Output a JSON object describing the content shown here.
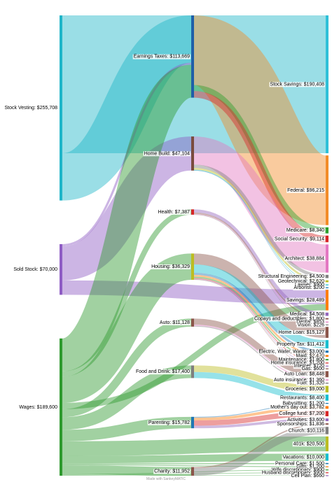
{
  "colors": {
    "Stock Vesting": "#1FB5C8",
    "Sold Stock": "#8E5CC4",
    "Wages": "#2E9A2E",
    "Earnings Taxes": "#1F5FA8",
    "Home Build": "#7A4B3E",
    "Stock Savings": "#2EC0D8",
    "Federal": "#F28C28",
    "Medicare": "#2CA02C",
    "Social Security": "#D62728",
    "Architect": "#E377C2",
    "Structural Engineering": "#7F7F7F",
    "Geotechnical": "#BCBD22",
    "Lawyer": "#17BECF",
    "Arbitrist": "#1F77B4",
    "Savings": "#FF7F0E",
    "Health": "#D62728",
    "Housing": "#BCBD22",
    "Auto": "#8C564B",
    "Food and Drink": "#7F7F7F",
    "Parenting": "#1F77B4",
    "Charity": "#8C564B",
    "Medical": "#9467BD",
    "Copays and deductibles": "#8C564B",
    "Dental": "#E377C2",
    "Vision": "#7F7F7F",
    "Home Loan": "#8C564B",
    "Property Tax": "#17BECF",
    "Electric, Water, Waste": "#1F77B4",
    "Maid": "#FF7F0E",
    "Maintenance": "#2CA02C",
    "Home insurance": "#D62728",
    "Internet": "#9467BD",
    "Gas": "#8C564B",
    "Auto Loan": "#8C564B",
    "Auto insurance": "#E377C2",
    "Fuel": "#7F7F7F",
    "Groceries": "#BCBD22",
    "Restaurants": "#17BECF",
    "Babysitting": "#1F77B4",
    "Mother's day out": "#FF7F0E",
    "College fund": "#D62728",
    "Activities": "#9467BD",
    "Sponsorships": "#8C564B",
    "Church": "#7F7F7F",
    "401k": "#BCBD22",
    "Vacations": "#17BECF",
    "Personal Care": "#1F77B4",
    "Gifts": "#FF7F0E",
    "Wife discretionary": "#2CA02C",
    "Husband discretionary": "#D62728",
    "Cell Plan": "#9467BD"
  },
  "nodes": [
    {
      "id": "Stock Vesting",
      "label": "Stock Vesting: $255,708",
      "value": 255708,
      "column": 0
    },
    {
      "id": "Sold Stock",
      "label": "Sold Stock: $70,000",
      "value": 70000,
      "column": 0
    },
    {
      "id": "Wages",
      "label": "Wages: $189,600",
      "value": 189600,
      "column": 0
    },
    {
      "id": "Earnings Taxes",
      "label": "Earnings Taxes: $113,669",
      "value": 113669,
      "column": 1
    },
    {
      "id": "Home Build",
      "label": "Home Build: $47,104",
      "value": 47104,
      "column": 1
    },
    {
      "id": "Health",
      "label": "Health: $7,387",
      "value": 7387,
      "column": 1
    },
    {
      "id": "Housing",
      "label": "Housing: $36,329",
      "value": 36329,
      "column": 1
    },
    {
      "id": "Auto",
      "label": "Auto: $11,128",
      "value": 11128,
      "column": 1
    },
    {
      "id": "Food and Drink",
      "label": "Food and Drink: $17,400",
      "value": 17400,
      "column": 1
    },
    {
      "id": "Parenting",
      "label": "Parenting: $15,782",
      "value": 15782,
      "column": 1
    },
    {
      "id": "Charity",
      "label": "Charity: $11,952",
      "value": 11952,
      "column": 1
    },
    {
      "id": "Stock Savings",
      "label": "Stock Savings: $190,408",
      "value": 190408,
      "column": 2
    },
    {
      "id": "Federal",
      "label": "Federal: $96,215",
      "value": 96215,
      "column": 2
    },
    {
      "id": "Medicare",
      "label": "Medicare: $8,340",
      "value": 8340,
      "column": 2
    },
    {
      "id": "Social Security",
      "label": "Social Security: $9,114",
      "value": 9114,
      "column": 2
    },
    {
      "id": "Architect",
      "label": "Architect: $38,884",
      "value": 38884,
      "column": 2
    },
    {
      "id": "Structural Engineering",
      "label": "Structural Engineering: $4,500",
      "value": 4500,
      "column": 2
    },
    {
      "id": "Geotechnical",
      "label": "Geotechnical: $2,620",
      "value": 2620,
      "column": 2
    },
    {
      "id": "Lawyer",
      "label": "Lawyer: $900",
      "value": 900,
      "column": 2
    },
    {
      "id": "Arbitrist",
      "label": "Arborist: $200",
      "value": 200,
      "column": 2
    },
    {
      "id": "Savings",
      "label": "Savings: $28,489",
      "value": 28489,
      "column": 2
    },
    {
      "id": "Medical",
      "label": "Medical: $4,508",
      "value": 4508,
      "column": 2
    },
    {
      "id": "Copays and deductibles",
      "label": "Copays and deductibles: $1,800",
      "value": 1800,
      "column": 2
    },
    {
      "id": "Dental",
      "label": "Dental: $853",
      "value": 853,
      "column": 2
    },
    {
      "id": "Vision",
      "label": "Vision: $226",
      "value": 226,
      "column": 2
    },
    {
      "id": "Home Loan",
      "label": "Home Loan: $15,127",
      "value": 15127,
      "column": 2
    },
    {
      "id": "Property Tax",
      "label": "Property Tax: $11,412",
      "value": 11412,
      "column": 2
    },
    {
      "id": "Electric, Water, Waste",
      "label": "Electric, Water, Waste: $3,000",
      "value": 3000,
      "column": 2
    },
    {
      "id": "Maid",
      "label": "Maid: $2,470",
      "value": 2470,
      "column": 2
    },
    {
      "id": "Maintenance",
      "label": "Maintenance: $1,800",
      "value": 1800,
      "column": 2
    },
    {
      "id": "Home insurance",
      "label": "Home insurance: $1,200",
      "value": 1200,
      "column": 2
    },
    {
      "id": "Internet",
      "label": "Internet: $720",
      "value": 720,
      "column": 2
    },
    {
      "id": "Gas",
      "label": "Gas: $600",
      "value": 600,
      "column": 2
    },
    {
      "id": "Auto Loan",
      "label": "Auto Loan: $8,448",
      "value": 8448,
      "column": 2
    },
    {
      "id": "Auto insurance",
      "label": "Auto insurance: $1,360",
      "value": 1360,
      "column": 2
    },
    {
      "id": "Fuel",
      "label": "Fuel: $1,320",
      "value": 1320,
      "column": 2
    },
    {
      "id": "Groceries",
      "label": "Groceries: $9,000",
      "value": 9000,
      "column": 2
    },
    {
      "id": "Restaurants",
      "label": "Restaurants: $8,400",
      "value": 8400,
      "column": 2
    },
    {
      "id": "Babysitting",
      "label": "Babysitting: $1,200",
      "value": 1200,
      "column": 2
    },
    {
      "id": "Mother's day out",
      "label": "Mother's day out: $3,782",
      "value": 3782,
      "column": 2
    },
    {
      "id": "College fund",
      "label": "College fund: $7,200",
      "value": 7200,
      "column": 2
    },
    {
      "id": "Activities",
      "label": "Activities: $3,600",
      "value": 3600,
      "column": 2
    },
    {
      "id": "Sponsorships",
      "label": "Sponsorships: $1,836",
      "value": 1836,
      "column": 2
    },
    {
      "id": "Church",
      "label": "Church: $10,116",
      "value": 10116,
      "column": 2
    },
    {
      "id": "401k",
      "label": "401k: $20,500",
      "value": 20500,
      "column": 2
    },
    {
      "id": "Vacations",
      "label": "Vacations: $10,000",
      "value": 10000,
      "column": 2
    },
    {
      "id": "Personal Care",
      "label": "Personal Care: $1,500",
      "value": 1500,
      "column": 2
    },
    {
      "id": "Gifts",
      "label": "Gifts: $1,200",
      "value": 1200,
      "column": 2
    },
    {
      "id": "Wife discretionary",
      "label": "Wife discretionary: $900",
      "value": 900,
      "column": 2
    },
    {
      "id": "Husband discretionary",
      "label": "Husband discretionary: $900",
      "value": 900,
      "column": 2
    },
    {
      "id": "Cell Plan",
      "label": "Cell Plan: $660",
      "value": 660,
      "column": 2
    }
  ],
  "links": [
    {
      "source": "Stock Vesting",
      "target": "Stock Savings",
      "value": 190408
    },
    {
      "source": "Stock Vesting",
      "target": "Earnings Taxes",
      "value": 65300
    },
    {
      "source": "Sold Stock",
      "target": "Earnings Taxes",
      "value": 3000
    },
    {
      "source": "Sold Stock",
      "target": "Home Build",
      "value": 47104
    },
    {
      "source": "Sold Stock",
      "target": "Savings",
      "value": 19896
    },
    {
      "source": "Wages",
      "target": "Earnings Taxes",
      "value": 45369
    },
    {
      "source": "Wages",
      "target": "Savings",
      "value": 8593
    },
    {
      "source": "Wages",
      "target": "Health",
      "value": 7387
    },
    {
      "source": "Wages",
      "target": "Housing",
      "value": 36329
    },
    {
      "source": "Wages",
      "target": "Auto",
      "value": 11128
    },
    {
      "source": "Wages",
      "target": "Food and Drink",
      "value": 17400
    },
    {
      "source": "Wages",
      "target": "Parenting",
      "value": 15782
    },
    {
      "source": "Wages",
      "target": "Charity",
      "value": 11952
    },
    {
      "source": "Wages",
      "target": "401k",
      "value": 20500
    },
    {
      "source": "Wages",
      "target": "Vacations",
      "value": 10000
    },
    {
      "source": "Wages",
      "target": "Personal Care",
      "value": 1500
    },
    {
      "source": "Wages",
      "target": "Gifts",
      "value": 1200
    },
    {
      "source": "Wages",
      "target": "Wife discretionary",
      "value": 900
    },
    {
      "source": "Wages",
      "target": "Husband discretionary",
      "value": 900
    },
    {
      "source": "Wages",
      "target": "Cell Plan",
      "value": 660
    },
    {
      "source": "Earnings Taxes",
      "target": "Federal",
      "value": 96215
    },
    {
      "source": "Earnings Taxes",
      "target": "Medicare",
      "value": 8340
    },
    {
      "source": "Earnings Taxes",
      "target": "Social Security",
      "value": 9114
    },
    {
      "source": "Home Build",
      "target": "Architect",
      "value": 38884
    },
    {
      "source": "Home Build",
      "target": "Structural Engineering",
      "value": 4500
    },
    {
      "source": "Home Build",
      "target": "Geotechnical",
      "value": 2620
    },
    {
      "source": "Home Build",
      "target": "Lawyer",
      "value": 900
    },
    {
      "source": "Home Build",
      "target": "Arbitrist",
      "value": 200
    },
    {
      "source": "Health",
      "target": "Medical",
      "value": 4508
    },
    {
      "source": "Health",
      "target": "Copays and deductibles",
      "value": 1800
    },
    {
      "source": "Health",
      "target": "Dental",
      "value": 853
    },
    {
      "source": "Health",
      "target": "Vision",
      "value": 226
    },
    {
      "source": "Housing",
      "target": "Home Loan",
      "value": 15127
    },
    {
      "source": "Housing",
      "target": "Property Tax",
      "value": 11412
    },
    {
      "source": "Housing",
      "target": "Electric, Water, Waste",
      "value": 3000
    },
    {
      "source": "Housing",
      "target": "Maid",
      "value": 2470
    },
    {
      "source": "Housing",
      "target": "Maintenance",
      "value": 1800
    },
    {
      "source": "Housing",
      "target": "Home insurance",
      "value": 1200
    },
    {
      "source": "Housing",
      "target": "Internet",
      "value": 720
    },
    {
      "source": "Housing",
      "target": "Gas",
      "value": 600
    },
    {
      "source": "Auto",
      "target": "Auto Loan",
      "value": 8448
    },
    {
      "source": "Auto",
      "target": "Auto insurance",
      "value": 1360
    },
    {
      "source": "Auto",
      "target": "Fuel",
      "value": 1320
    },
    {
      "source": "Food and Drink",
      "target": "Groceries",
      "value": 9000
    },
    {
      "source": "Food and Drink",
      "target": "Restaurants",
      "value": 8400
    },
    {
      "source": "Parenting",
      "target": "Babysitting",
      "value": 1200
    },
    {
      "source": "Parenting",
      "target": "Mother's day out",
      "value": 3782
    },
    {
      "source": "Parenting",
      "target": "College fund",
      "value": 7200
    },
    {
      "source": "Parenting",
      "target": "Activities",
      "value": 3600
    },
    {
      "source": "Charity",
      "target": "Sponsorships",
      "value": 1836
    },
    {
      "source": "Charity",
      "target": "Church",
      "value": 10116
    }
  ],
  "credit": "Made with SankeyMATIC"
}
